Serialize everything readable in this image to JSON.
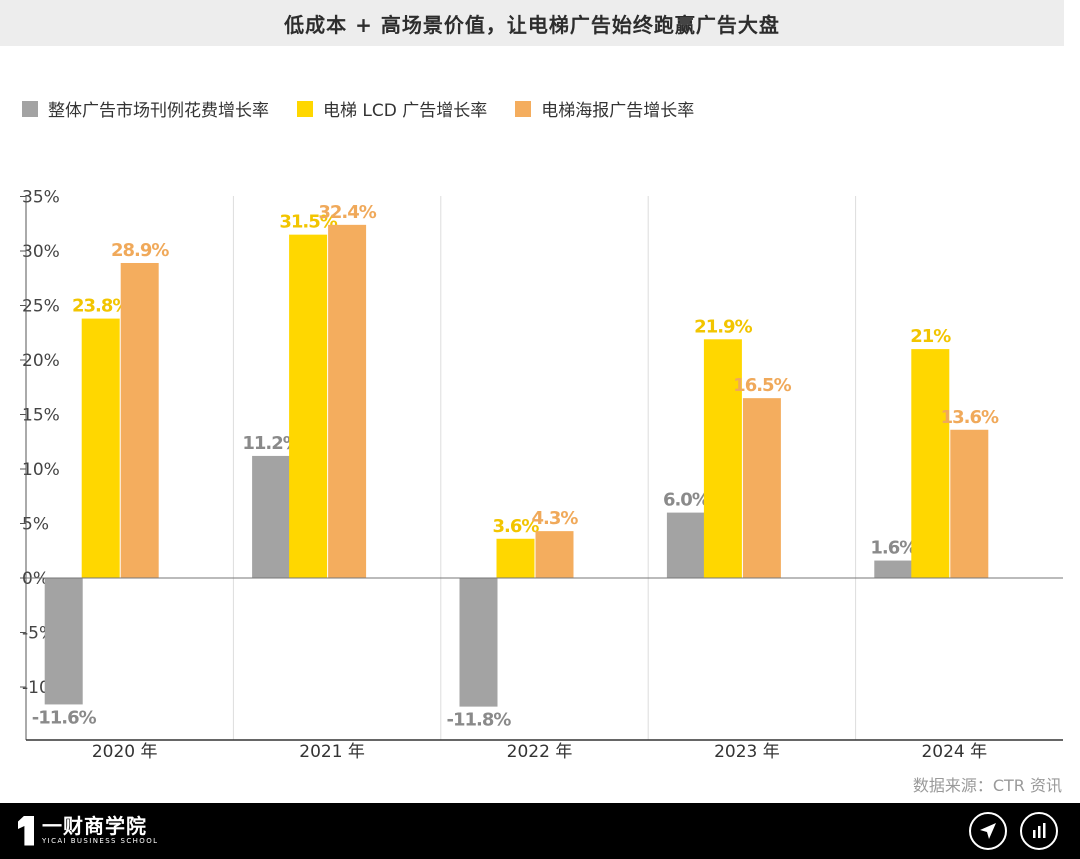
{
  "title": "低成本 + 高场景价值，让电梯广告始终跑赢广告大盘",
  "source": "数据来源：CTR 资讯",
  "footer": {
    "logo_cn": "一财商学院",
    "logo_en": "YICAI BUSINESS SCHOOL",
    "share_icon": "send-icon",
    "stats_icon": "bar-chart-icon"
  },
  "colors": {
    "gray": "#a3a3a3",
    "yellow": "#ffd700",
    "orange": "#f4ad5e",
    "yellow_label": "#f2c500",
    "orange_label": "#f0a95a",
    "gray_label": "#8a8a8a"
  },
  "chart_data": {
    "type": "bar",
    "title": "低成本 + 高场景价值，让电梯广告始终跑赢广告大盘",
    "categories": [
      "2020 年",
      "2021 年",
      "2022 年",
      "2023 年",
      "2024 年"
    ],
    "series": [
      {
        "name": "整体广告市场刊例花费增长率",
        "values": [
          -11.6,
          11.2,
          -11.8,
          6.0,
          1.6
        ],
        "labels": [
          "-11.6%",
          "11.2%",
          "-11.8%",
          "6.0%",
          "1.6%"
        ]
      },
      {
        "name": "电梯 LCD 广告增长率",
        "values": [
          23.8,
          31.5,
          3.6,
          21.9,
          21
        ],
        "labels": [
          "23.8%",
          "31.5%",
          "3.6%",
          "21.9%",
          "21%"
        ]
      },
      {
        "name": "电梯海报广告增长率",
        "values": [
          28.9,
          32.4,
          4.3,
          16.5,
          13.6
        ],
        "labels": [
          "28.9%",
          "32.4%",
          "4.3%",
          "16.5%",
          "13.6%"
        ]
      }
    ],
    "yticks": [
      "35%",
      "30%",
      "25%",
      "20%",
      "15%",
      "10%",
      "5%",
      "0%",
      "-5%",
      "-10%"
    ],
    "ytick_values": [
      35,
      30,
      25,
      20,
      15,
      10,
      5,
      0,
      -5,
      -10
    ],
    "ylim": [
      -14.8,
      35
    ],
    "xlabel": "",
    "ylabel": "",
    "legend": "top-left",
    "grid": false
  }
}
